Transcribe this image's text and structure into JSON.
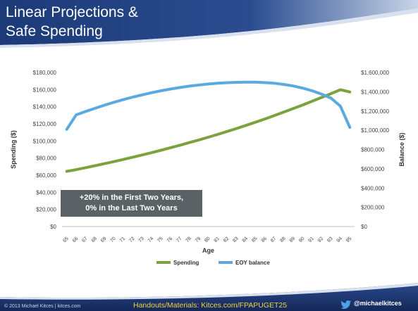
{
  "slide": {
    "title_line1": "Linear Projections &",
    "title_line2": "Safe Spending",
    "copyright": "© 2013 Michael Kitces | kitces.com",
    "handouts": "Handouts/Materials: Kitces.com/FPAPUGET25",
    "twitter_handle": "@michaelkitces",
    "twitter_icon": "twitter-bird-icon",
    "colors": {
      "header": "#1f3d7a",
      "title_text": "#ffffff",
      "spending": "#7aa33e",
      "balance": "#5aa9e0",
      "annotation_bg": "#5b6266",
      "handouts_text": "#f3d23a"
    }
  },
  "annotation": {
    "line1": "+20% in the First Two Years,",
    "line2": "0% in the Last Two Years"
  },
  "chart_data": {
    "type": "line",
    "xlabel": "Age",
    "ylabel_left": "Spending ($)",
    "ylabel_right": "Balance ($)",
    "x": [
      65,
      66,
      67,
      68,
      69,
      70,
      71,
      72,
      73,
      74,
      75,
      76,
      77,
      78,
      79,
      80,
      81,
      82,
      83,
      84,
      85,
      86,
      87,
      88,
      89,
      90,
      91,
      92,
      93,
      94,
      95
    ],
    "left_ticks": [
      "$0",
      "$20,000",
      "$40,000",
      "$60,000",
      "$80,000",
      "$100,000",
      "$120,000",
      "$140,000",
      "$160,000",
      "$180,000"
    ],
    "right_ticks": [
      "$0",
      "$200,000",
      "$400,000",
      "$600,000",
      "$800,000",
      "$1,000,000",
      "$1,200,000",
      "$1,400,000",
      "$1,600,000"
    ],
    "ylim_left": [
      0,
      180000
    ],
    "ylim_right": [
      0,
      1600000
    ],
    "grid": false,
    "legend_position": "bottom",
    "series": [
      {
        "name": "Spending",
        "axis": "left",
        "values": [
          64500,
          66500,
          68800,
          71100,
          73500,
          75900,
          78400,
          81000,
          83700,
          86400,
          89200,
          92100,
          95000,
          98100,
          101200,
          104400,
          107700,
          111100,
          114600,
          118200,
          121900,
          125700,
          129600,
          133700,
          137800,
          142000,
          146400,
          150800,
          155300,
          159900,
          157200
        ]
      },
      {
        "name": "EOY balance",
        "axis": "right",
        "values": [
          1010000,
          1160000,
          1195000,
          1228000,
          1260000,
          1290000,
          1318000,
          1344000,
          1368000,
          1390000,
          1410000,
          1428000,
          1444000,
          1458000,
          1470000,
          1480000,
          1488000,
          1494000,
          1498000,
          1500000,
          1499000,
          1495000,
          1488000,
          1476000,
          1460000,
          1438000,
          1410000,
          1376000,
          1334000,
          1250000,
          1030000
        ]
      }
    ]
  }
}
